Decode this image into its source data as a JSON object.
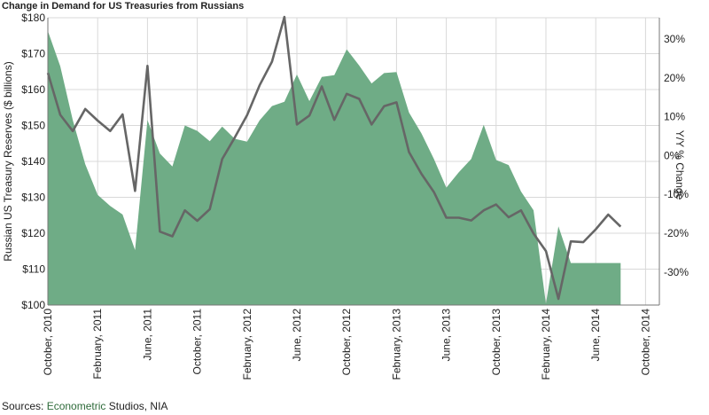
{
  "title": "Change in Demand for US Treasuries from Russians",
  "source": {
    "prefix": "Sources: ",
    "brand": "Econometric",
    "suffix": " Studios, NIA"
  },
  "colors": {
    "area": "#6fac86",
    "line": "#666666",
    "grid": "#d9d9d9"
  },
  "chart_data": {
    "type": "area",
    "x_start": "2010-10",
    "ylabel": "Russian US Treasury Reserves ($ billions)",
    "y2label": "Y/Y % Change",
    "ylim": [
      100,
      180
    ],
    "y2lim": [
      -38.5,
      35.5
    ],
    "grid": true,
    "x_ticks": [
      {
        "label": "October, 2010",
        "index": 0
      },
      {
        "label": "February, 2011",
        "index": 4
      },
      {
        "label": "June, 2011",
        "index": 8
      },
      {
        "label": "October, 2011",
        "index": 12
      },
      {
        "label": "February, 2012",
        "index": 16
      },
      {
        "label": "June, 2012",
        "index": 20
      },
      {
        "label": "October, 2012",
        "index": 24
      },
      {
        "label": "February, 2013",
        "index": 28
      },
      {
        "label": "June, 2013",
        "index": 32
      },
      {
        "label": "October, 2013",
        "index": 36
      },
      {
        "label": "February, 2014",
        "index": 40
      },
      {
        "label": "June, 2014",
        "index": 44
      },
      {
        "label": "October, 2014",
        "index": 48
      }
    ],
    "y_ticks": [
      {
        "label": "$180",
        "value": 180
      },
      {
        "label": "$170",
        "value": 170
      },
      {
        "label": "$160",
        "value": 160
      },
      {
        "label": "$150",
        "value": 150
      },
      {
        "label": "$140",
        "value": 140
      },
      {
        "label": "$130",
        "value": 130
      },
      {
        "label": "$120",
        "value": 120
      },
      {
        "label": "$110",
        "value": 110
      },
      {
        "label": "$100",
        "value": 100
      }
    ],
    "y2_ticks": [
      {
        "label": "30%",
        "value": 30
      },
      {
        "label": "20%",
        "value": 20
      },
      {
        "label": "10%",
        "value": 10
      },
      {
        "label": "0%",
        "value": 0
      },
      {
        "label": "-10%",
        "value": -10
      },
      {
        "label": "-20%",
        "value": -20
      },
      {
        "label": "-30%",
        "value": -30
      }
    ],
    "series": [
      {
        "kind": "area",
        "axis": "left",
        "values": [
          176.3,
          166.5,
          151.5,
          139.2,
          130.7,
          127.6,
          125.2,
          115.3,
          151.5,
          142.2,
          138.6,
          150.0,
          148.5,
          145.6,
          149.7,
          146.3,
          145.5,
          151.4,
          155.4,
          156.6,
          164.2,
          156.8,
          163.5,
          164.0,
          171.2,
          166.7,
          161.7,
          164.6,
          164.9,
          153.6,
          147.8,
          140.7,
          132.7,
          137.0,
          140.7,
          150.2,
          140.4,
          139.0,
          131.6,
          126.4,
          100.4,
          121.9,
          111.7,
          111.7,
          111.7,
          111.7,
          111.7
        ]
      },
      {
        "kind": "line",
        "axis": "right",
        "values": [
          21.3,
          10.5,
          6.3,
          12.0,
          9.0,
          6.3,
          10.6,
          -9.1,
          23.1,
          -19.6,
          -20.8,
          -14.1,
          -16.8,
          -13.8,
          -0.9,
          4.6,
          10.4,
          18.1,
          24.2,
          35.7,
          8.0,
          10.3,
          17.8,
          9.2,
          15.9,
          14.6,
          8.0,
          12.7,
          13.7,
          0.9,
          -4.7,
          -9.4,
          -16.0,
          -16.0,
          -16.7,
          -14.1,
          -12.6,
          -15.9,
          -14.1,
          -20.1,
          -24.6,
          -36.9,
          -22.1,
          -22.3,
          -19.0,
          -15.2,
          -18.3
        ]
      }
    ]
  }
}
